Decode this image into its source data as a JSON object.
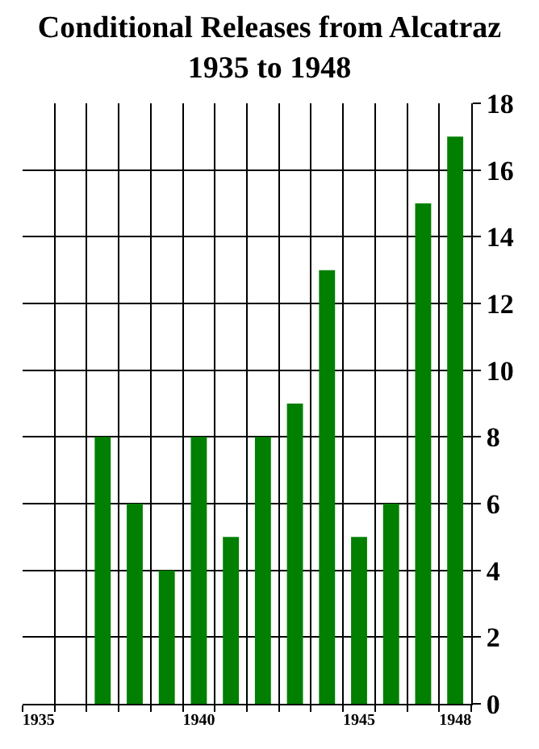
{
  "chart_data": {
    "type": "bar",
    "title": "Conditional Releases from Alcatraz\n1935 to 1948",
    "categories": [
      "1935",
      null,
      null,
      null,
      null,
      "1940",
      null,
      null,
      null,
      null,
      "1945",
      null,
      null,
      "1948"
    ],
    "values": [
      0,
      0,
      8,
      6,
      4,
      8,
      5,
      8,
      9,
      13,
      5,
      6,
      15,
      17
    ],
    "color": "#007f00",
    "ylim": [
      0,
      18
    ],
    "yticks": [
      0,
      2,
      4,
      6,
      8,
      10,
      12,
      14,
      16,
      18
    ],
    "grid": true
  }
}
